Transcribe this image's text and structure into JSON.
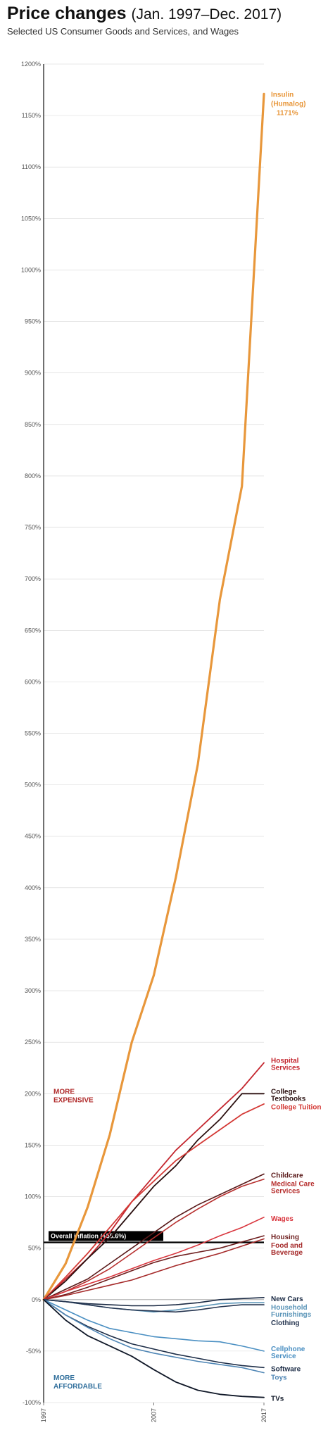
{
  "header": {
    "title_bold": "Price changes",
    "title_range": "(Jan. 1997–Dec. 2017)",
    "subtitle": "Selected US Consumer Goods and Services, and Wages"
  },
  "chart_data": {
    "type": "line",
    "x": [
      1997,
      1999,
      2001,
      2003,
      2005,
      2007,
      2009,
      2011,
      2013,
      2015,
      2017
    ],
    "x_ticks": [
      "1997",
      "2007",
      "2017"
    ],
    "ylim": [
      -100,
      1200
    ],
    "y_ticks": [
      -100,
      -50,
      0,
      50,
      100,
      150,
      200,
      250,
      300,
      350,
      400,
      450,
      500,
      550,
      600,
      650,
      700,
      750,
      800,
      850,
      900,
      950,
      1000,
      1050,
      1100,
      1150,
      1200
    ],
    "y_tick_labels": [
      "-100%",
      "-50%",
      "0%",
      "50%",
      "100%",
      "150%",
      "200%",
      "250%",
      "300%",
      "350%",
      "400%",
      "450%",
      "500%",
      "550%",
      "600%",
      "650%",
      "700%",
      "750%",
      "800%",
      "850%",
      "900%",
      "950%",
      "1000%",
      "1050%",
      "1100%",
      "1150%",
      "1200%"
    ],
    "grid": true,
    "series": [
      {
        "name": "Insulin (Humalog)",
        "color": "#e8973b",
        "width": 3.2,
        "values": [
          0,
          35,
          90,
          160,
          250,
          315,
          410,
          520,
          680,
          790,
          1171
        ],
        "label_lines": [
          "Insulin",
          "(Humalog)",
          "1171%"
        ]
      },
      {
        "name": "Hospital Services",
        "color": "#c4262e",
        "width": 1.8,
        "values": [
          0,
          20,
          40,
          65,
          95,
          120,
          145,
          165,
          185,
          205,
          230
        ],
        "label_lines": [
          "Hospital",
          "Services"
        ]
      },
      {
        "name": "College Textbooks",
        "color": "#2a0f0f",
        "width": 1.8,
        "values": [
          0,
          18,
          40,
          60,
          85,
          110,
          130,
          155,
          175,
          200,
          200
        ],
        "label_lines": [
          "College",
          "Textbooks"
        ]
      },
      {
        "name": "College Tuition",
        "color": "#d43a36",
        "width": 1.8,
        "values": [
          0,
          22,
          45,
          70,
          95,
          115,
          135,
          150,
          165,
          180,
          190
        ],
        "label_lines": [
          "College Tuition"
        ]
      },
      {
        "name": "Childcare",
        "color": "#5a1a1a",
        "width": 1.6,
        "values": [
          0,
          10,
          20,
          35,
          50,
          65,
          80,
          92,
          102,
          112,
          122
        ],
        "label_lines": [
          "Childcare"
        ]
      },
      {
        "name": "Medical Care Services",
        "color": "#b7302f",
        "width": 1.6,
        "values": [
          0,
          8,
          18,
          30,
          45,
          60,
          75,
          88,
          100,
          110,
          117
        ],
        "label_lines": [
          "Medical Care",
          "Services"
        ]
      },
      {
        "name": "Wages",
        "color": "#d9363e",
        "width": 1.6,
        "values": [
          0,
          8,
          15,
          22,
          30,
          38,
          45,
          53,
          62,
          70,
          80
        ],
        "label_lines": [
          "Wages"
        ]
      },
      {
        "name": "Housing",
        "color": "#6e1e1e",
        "width": 1.6,
        "values": [
          0,
          5,
          12,
          20,
          28,
          36,
          42,
          46,
          50,
          56,
          62
        ],
        "label_lines": [
          "Housing"
        ]
      },
      {
        "name": "Food and Beverage",
        "color": "#a52a2a",
        "width": 1.6,
        "values": [
          0,
          4,
          9,
          14,
          19,
          26,
          33,
          39,
          45,
          52,
          59
        ],
        "label_lines": [
          "Food and",
          "Beverage"
        ]
      },
      {
        "name": "New Cars",
        "color": "#1a2a44",
        "width": 1.6,
        "values": [
          0,
          -2,
          -4,
          -5,
          -6,
          -6,
          -5,
          -3,
          0,
          1,
          2
        ],
        "label_lines": [
          "New Cars"
        ]
      },
      {
        "name": "Household Furnishings",
        "color": "#5b95b8",
        "width": 1.6,
        "values": [
          0,
          -2,
          -5,
          -8,
          -10,
          -12,
          -10,
          -7,
          -4,
          -3,
          -3
        ],
        "label_lines": [
          "Household",
          "Furnishings"
        ]
      },
      {
        "name": "Clothing",
        "color": "#24344f",
        "width": 1.6,
        "values": [
          0,
          -2,
          -5,
          -8,
          -10,
          -11,
          -12,
          -10,
          -7,
          -5,
          -5
        ],
        "label_lines": [
          "Clothing"
        ]
      },
      {
        "name": "Cellphone Service",
        "color": "#4a8fc2",
        "width": 1.6,
        "values": [
          0,
          -10,
          -20,
          -28,
          -32,
          -36,
          -38,
          -40,
          -41,
          -45,
          -50
        ],
        "label_lines": [
          "Cellphone",
          "Service"
        ]
      },
      {
        "name": "Software",
        "color": "#1e2e48",
        "width": 1.6,
        "values": [
          0,
          -15,
          -26,
          -35,
          -43,
          -48,
          -53,
          -57,
          -61,
          -64,
          -66
        ],
        "label_lines": [
          "Software"
        ]
      },
      {
        "name": "Toys",
        "color": "#4f86b5",
        "width": 1.6,
        "values": [
          0,
          -15,
          -27,
          -38,
          -47,
          -52,
          -56,
          -60,
          -63,
          -66,
          -71
        ],
        "label_lines": [
          "Toys"
        ]
      },
      {
        "name": "TVs",
        "color": "#101828",
        "width": 1.8,
        "values": [
          0,
          -20,
          -35,
          -45,
          -55,
          -68,
          -80,
          -88,
          -92,
          -94,
          -95
        ],
        "label_lines": [
          "TVs"
        ]
      }
    ],
    "annotations": {
      "overall_inflation": {
        "text": "Overall inflation (+55.6%)",
        "value": 55.6
      },
      "more_expensive": [
        "MORE",
        "EXPENSIVE"
      ],
      "more_affordable": [
        "MORE",
        "AFFORDABLE"
      ]
    }
  }
}
